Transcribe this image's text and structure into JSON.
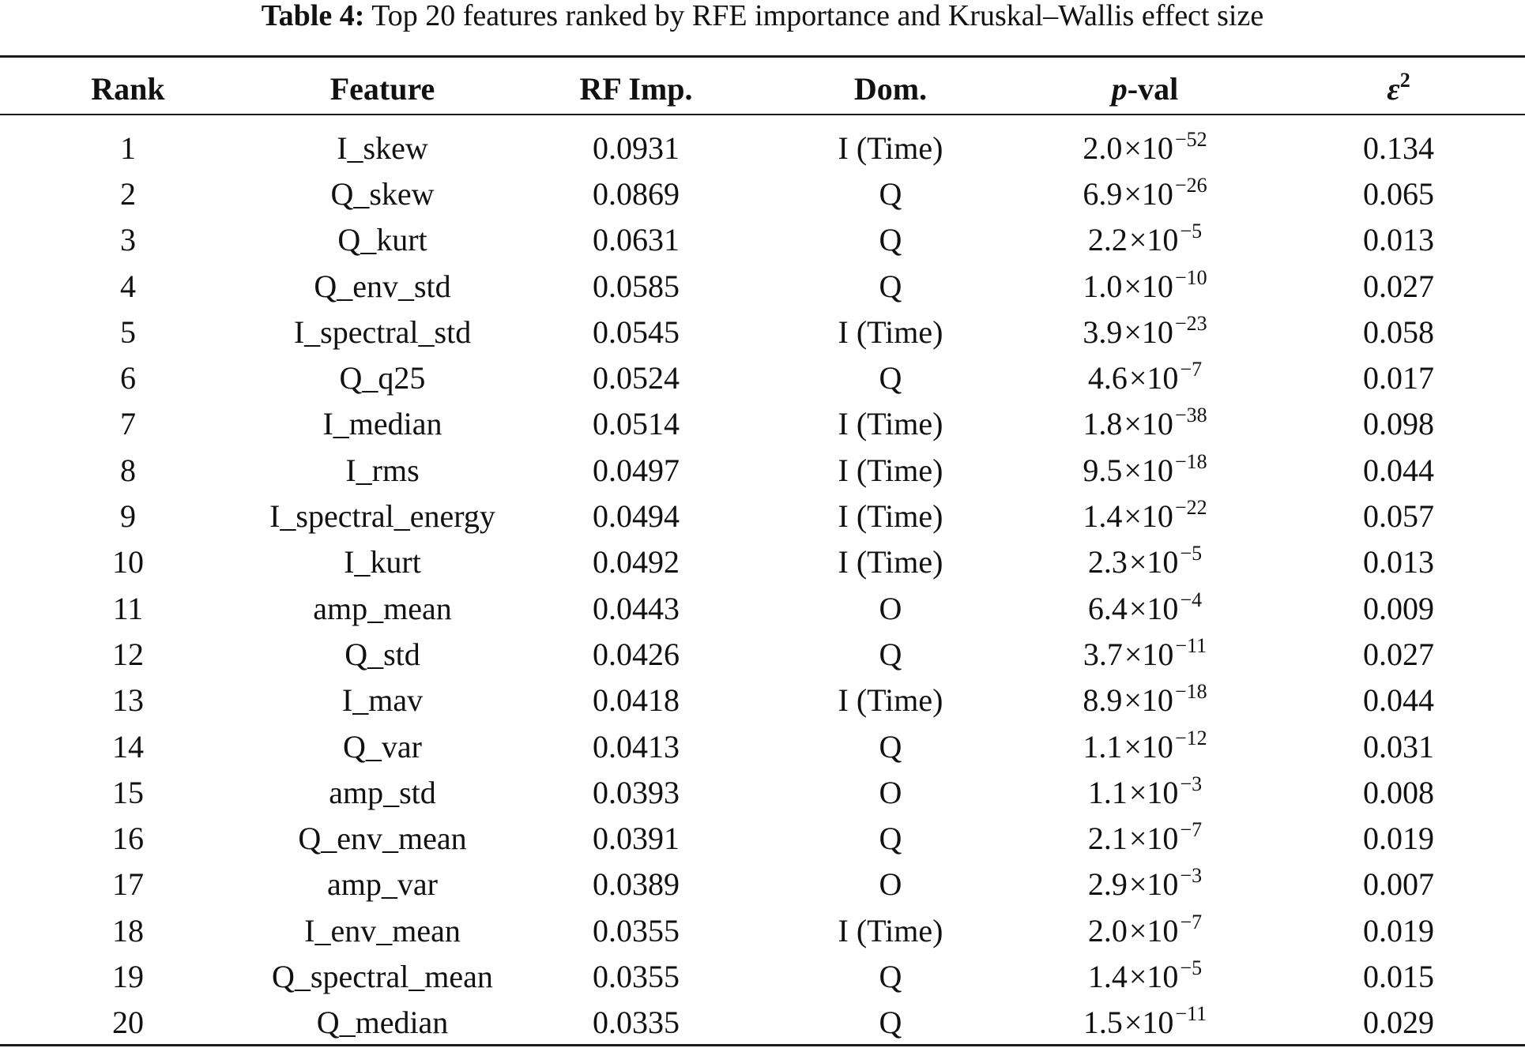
{
  "caption": {
    "label": "Table 4:",
    "text": " Top 20 features ranked by RFE importance and Kruskal–Wallis effect size"
  },
  "headers": {
    "rank": "Rank",
    "feature": "Feature",
    "rf_imp": "RF Imp.",
    "dom": "Dom.",
    "pval_italic": "p",
    "pval_rest": "-val",
    "eps_base": "ε",
    "eps_sup": "2"
  },
  "rows": [
    {
      "rank": "1",
      "feature": "I_skew",
      "rf_imp": "0.0931",
      "dom": "I (Time)",
      "p_mant": "2.0",
      "p_exp": "−52",
      "eps": "0.134"
    },
    {
      "rank": "2",
      "feature": "Q_skew",
      "rf_imp": "0.0869",
      "dom": "Q",
      "p_mant": "6.9",
      "p_exp": "−26",
      "eps": "0.065"
    },
    {
      "rank": "3",
      "feature": "Q_kurt",
      "rf_imp": "0.0631",
      "dom": "Q",
      "p_mant": "2.2",
      "p_exp": "−5",
      "eps": "0.013"
    },
    {
      "rank": "4",
      "feature": "Q_env_std",
      "rf_imp": "0.0585",
      "dom": "Q",
      "p_mant": "1.0",
      "p_exp": "−10",
      "eps": "0.027"
    },
    {
      "rank": "5",
      "feature": "I_spectral_std",
      "rf_imp": "0.0545",
      "dom": "I (Time)",
      "p_mant": "3.9",
      "p_exp": "−23",
      "eps": "0.058"
    },
    {
      "rank": "6",
      "feature": "Q_q25",
      "rf_imp": "0.0524",
      "dom": "Q",
      "p_mant": "4.6",
      "p_exp": "−7",
      "eps": "0.017"
    },
    {
      "rank": "7",
      "feature": "I_median",
      "rf_imp": "0.0514",
      "dom": "I (Time)",
      "p_mant": "1.8",
      "p_exp": "−38",
      "eps": "0.098"
    },
    {
      "rank": "8",
      "feature": "I_rms",
      "rf_imp": "0.0497",
      "dom": "I (Time)",
      "p_mant": "9.5",
      "p_exp": "−18",
      "eps": "0.044"
    },
    {
      "rank": "9",
      "feature": "I_spectral_energy",
      "rf_imp": "0.0494",
      "dom": "I (Time)",
      "p_mant": "1.4",
      "p_exp": "−22",
      "eps": "0.057"
    },
    {
      "rank": "10",
      "feature": "I_kurt",
      "rf_imp": "0.0492",
      "dom": "I (Time)",
      "p_mant": "2.3",
      "p_exp": "−5",
      "eps": "0.013"
    },
    {
      "rank": "11",
      "feature": "amp_mean",
      "rf_imp": "0.0443",
      "dom": "O",
      "p_mant": "6.4",
      "p_exp": "−4",
      "eps": "0.009"
    },
    {
      "rank": "12",
      "feature": "Q_std",
      "rf_imp": "0.0426",
      "dom": "Q",
      "p_mant": "3.7",
      "p_exp": "−11",
      "eps": "0.027"
    },
    {
      "rank": "13",
      "feature": "I_mav",
      "rf_imp": "0.0418",
      "dom": "I (Time)",
      "p_mant": "8.9",
      "p_exp": "−18",
      "eps": "0.044"
    },
    {
      "rank": "14",
      "feature": "Q_var",
      "rf_imp": "0.0413",
      "dom": "Q",
      "p_mant": "1.1",
      "p_exp": "−12",
      "eps": "0.031"
    },
    {
      "rank": "15",
      "feature": "amp_std",
      "rf_imp": "0.0393",
      "dom": "O",
      "p_mant": "1.1",
      "p_exp": "−3",
      "eps": "0.008"
    },
    {
      "rank": "16",
      "feature": "Q_env_mean",
      "rf_imp": "0.0391",
      "dom": "Q",
      "p_mant": "2.1",
      "p_exp": "−7",
      "eps": "0.019"
    },
    {
      "rank": "17",
      "feature": "amp_var",
      "rf_imp": "0.0389",
      "dom": "O",
      "p_mant": "2.9",
      "p_exp": "−3",
      "eps": "0.007"
    },
    {
      "rank": "18",
      "feature": "I_env_mean",
      "rf_imp": "0.0355",
      "dom": "I (Time)",
      "p_mant": "2.0",
      "p_exp": "−7",
      "eps": "0.019"
    },
    {
      "rank": "19",
      "feature": "Q_spectral_mean",
      "rf_imp": "0.0355",
      "dom": "Q",
      "p_mant": "1.4",
      "p_exp": "−5",
      "eps": "0.015"
    },
    {
      "rank": "20",
      "feature": "Q_median",
      "rf_imp": "0.0335",
      "dom": "Q",
      "p_mant": "1.5",
      "p_exp": "−11",
      "eps": "0.029"
    }
  ],
  "chart_data": {
    "type": "table",
    "title": "Table 4: Top 20 features ranked by RFE importance and Kruskal–Wallis effect size",
    "columns": [
      "Rank",
      "Feature",
      "RF Imp.",
      "Dom.",
      "p-val",
      "ε²"
    ]
  }
}
